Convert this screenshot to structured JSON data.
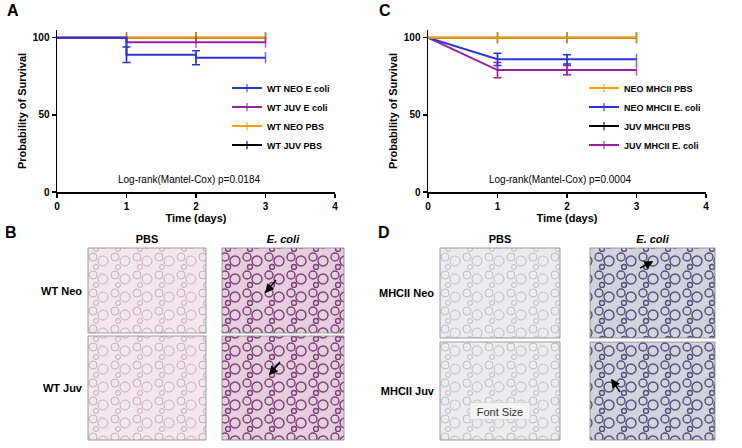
{
  "chart_data": [
    {
      "type": "line",
      "title": "A",
      "line_style": "step",
      "marker": "tick",
      "x": [
        0,
        1,
        2,
        3
      ],
      "x_label": "Time (days)",
      "y_label": "Probability of Survival",
      "xlim": [
        0,
        4
      ],
      "xticks": [
        0,
        1,
        2,
        3,
        4
      ],
      "ylim": [
        0,
        105
      ],
      "yticks": [
        0,
        50,
        100
      ],
      "grid": false,
      "legend": "lower right",
      "annotations": [
        "Log-rank(Mantel-Cox) p=0.0184"
      ],
      "series": [
        {
          "name": "WT NEO E coli",
          "color": "#2b35d6",
          "values": [
            100,
            89,
            87,
            87
          ],
          "errors": [
            null,
            5,
            4.5,
            null
          ]
        },
        {
          "name": "WT JUV E coli",
          "color": "#9b1fa3",
          "values": [
            100,
            97,
            97,
            97
          ]
        },
        {
          "name": "WT NEO PBS",
          "color": "#ff9f00",
          "values": [
            100,
            100,
            100,
            100
          ]
        },
        {
          "name": "WT JUV PBS",
          "color": "#000000",
          "values": [
            100,
            100,
            100,
            100
          ]
        }
      ]
    },
    {
      "type": "line",
      "title": "C",
      "line_style": "solid",
      "marker": "tick",
      "x": [
        0,
        1,
        2,
        3
      ],
      "x_label": "Time (days)",
      "y_label": "Probability of Survival",
      "xlim": [
        0,
        4
      ],
      "xticks": [
        0,
        1,
        2,
        3,
        4
      ],
      "ylim": [
        0,
        105
      ],
      "yticks": [
        0,
        50,
        100
      ],
      "grid": false,
      "legend": "lower right",
      "annotations": [
        "Log-rank(Mantel-Cox) p=0.0004"
      ],
      "series": [
        {
          "name": "NEO MHCII PBS",
          "color": "#ff9f00",
          "values": [
            100,
            100,
            100,
            100
          ]
        },
        {
          "name": "NEO MHCII E. coli",
          "color": "#2b35d6",
          "values": [
            100,
            86,
            86,
            86
          ],
          "errors": [
            null,
            4,
            3,
            null
          ]
        },
        {
          "name": "JUV MHCII PBS",
          "color": "#000000",
          "values": [
            100,
            100,
            100,
            100
          ]
        },
        {
          "name": "JUV MHCII E. coli",
          "color": "#9b1fa3",
          "values": [
            100,
            79,
            79,
            79
          ],
          "errors": [
            null,
            5,
            3,
            null
          ]
        }
      ]
    }
  ],
  "image_panels": [
    {
      "label": "B",
      "columns": [
        "PBS",
        "E. coli"
      ],
      "rows": [
        "WT Neo",
        "WT Juv"
      ]
    },
    {
      "label": "D",
      "columns": [
        "PBS",
        "E. coli"
      ],
      "rows": [
        "MHCII Neo",
        "MHCII Juv"
      ],
      "image_texts": [
        {
          "row": 1,
          "column": 0,
          "text": "Font Size"
        }
      ]
    }
  ]
}
